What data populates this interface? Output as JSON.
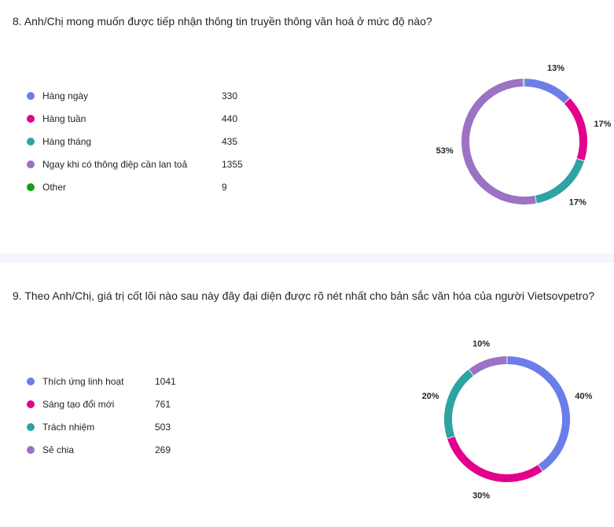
{
  "colors": {
    "blue": "#6b7de8",
    "magenta": "#e3008c",
    "teal": "#2ea3a3",
    "purple": "#9b72c4",
    "green": "#13a10e"
  },
  "questions": [
    {
      "title": "8. Anh/Chị mong muốn được tiếp nhận thông tin truyền thông văn hoá ở mức độ nào?",
      "options": [
        {
          "label": "Hàng ngày",
          "count": "330",
          "color": "#6b7de8"
        },
        {
          "label": "Hàng tuần",
          "count": "440",
          "color": "#e3008c"
        },
        {
          "label": "Hàng tháng",
          "count": "435",
          "color": "#2ea3a3"
        },
        {
          "label": "Ngay khi có thông điệp cần lan toả",
          "count": "1355",
          "color": "#9b72c4"
        },
        {
          "label": "Other",
          "count": "9",
          "color": "#13a10e"
        }
      ]
    },
    {
      "title": "9. Theo Anh/Chị, giá trị cốt lõi nào sau này đây đại diện được rõ nét nhất cho bản sắc văn hóa của người Vietsovpetro?",
      "options": [
        {
          "label": "Thích ứng linh hoạt",
          "count": "1041",
          "color": "#6b7de8"
        },
        {
          "label": "Sáng tạo đổi mới",
          "count": "761",
          "color": "#e3008c"
        },
        {
          "label": "Trách nhiệm",
          "count": "503",
          "color": "#2ea3a3"
        },
        {
          "label": "Sẻ chia",
          "count": "269",
          "color": "#9b72c4"
        }
      ]
    }
  ],
  "chart_data": [
    {
      "type": "pie",
      "donut": true,
      "categories": [
        "Hàng ngày",
        "Hàng tuần",
        "Hàng tháng",
        "Ngay khi có thông điệp cần lan toả",
        "Other"
      ],
      "values": [
        330,
        440,
        435,
        1355,
        9
      ],
      "labels": [
        "13%",
        "17%",
        "17%",
        "53%",
        ""
      ],
      "colors": [
        "#6b7de8",
        "#e3008c",
        "#2ea3a3",
        "#9b72c4",
        "#13a10e"
      ]
    },
    {
      "type": "pie",
      "donut": true,
      "categories": [
        "Thích ứng linh hoạt",
        "Sáng tạo đổi mới",
        "Trách nhiệm",
        "Sẻ chia"
      ],
      "values": [
        1041,
        761,
        503,
        269
      ],
      "labels": [
        "40%",
        "30%",
        "20%",
        "10%"
      ],
      "colors": [
        "#6b7de8",
        "#e3008c",
        "#2ea3a3",
        "#9b72c4"
      ]
    }
  ]
}
